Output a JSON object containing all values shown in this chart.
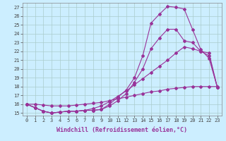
{
  "background_color": "#cceeff",
  "grid_color": "#aacccc",
  "line_color": "#993399",
  "x_values": [
    0,
    1,
    2,
    3,
    4,
    5,
    6,
    7,
    8,
    9,
    10,
    11,
    12,
    13,
    14,
    15,
    16,
    17,
    18,
    19,
    20,
    21,
    22,
    23
  ],
  "line1": [
    16.0,
    15.6,
    15.2,
    15.0,
    15.1,
    15.2,
    15.2,
    15.3,
    15.3,
    15.4,
    16.0,
    16.8,
    17.6,
    19.0,
    21.5,
    25.2,
    26.2,
    27.1,
    27.0,
    26.8,
    24.5,
    22.2,
    21.2,
    17.9
  ],
  "line2": [
    16.0,
    15.6,
    15.2,
    15.0,
    15.1,
    15.2,
    15.2,
    15.3,
    15.3,
    15.4,
    15.8,
    16.4,
    17.2,
    18.5,
    20.0,
    22.3,
    23.5,
    24.5,
    24.5,
    23.2,
    23.0,
    22.0,
    21.8,
    17.9
  ],
  "line3": [
    16.0,
    15.6,
    15.2,
    15.0,
    15.1,
    15.2,
    15.2,
    15.3,
    15.5,
    15.8,
    16.3,
    16.9,
    17.5,
    18.2,
    18.9,
    19.6,
    20.3,
    21.0,
    21.8,
    22.5,
    22.3,
    22.0,
    21.5,
    17.9
  ],
  "line4": [
    16.0,
    16.0,
    15.9,
    15.8,
    15.8,
    15.8,
    15.9,
    16.0,
    16.1,
    16.2,
    16.4,
    16.6,
    16.8,
    17.0,
    17.2,
    17.4,
    17.5,
    17.7,
    17.8,
    17.9,
    18.0,
    18.0,
    18.0,
    18.0
  ],
  "xlabel": "Windchill (Refroidissement éolien,°C)",
  "xlim_min": -0.5,
  "xlim_max": 23.5,
  "ylim_min": 14.7,
  "ylim_max": 27.5,
  "yticks": [
    15,
    16,
    17,
    18,
    19,
    20,
    21,
    22,
    23,
    24,
    25,
    26,
    27
  ],
  "xticks": [
    0,
    1,
    2,
    3,
    4,
    5,
    6,
    7,
    8,
    9,
    10,
    11,
    12,
    13,
    14,
    15,
    16,
    17,
    18,
    19,
    20,
    21,
    22,
    23
  ],
  "marker": "D",
  "marker_size": 2.0,
  "line_width": 0.8,
  "tick_fontsize": 5.0,
  "xlabel_fontsize": 6.0
}
